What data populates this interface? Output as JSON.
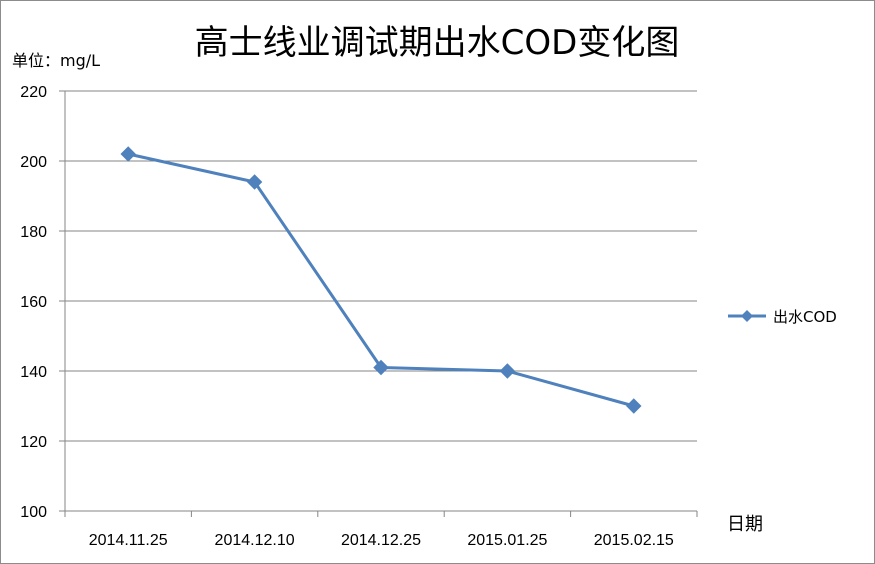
{
  "chart_data": {
    "type": "line",
    "title": "高士线业调试期出水COD变化图",
    "unit_label": "单位：mg/L",
    "xlabel": "日期",
    "ylabel": "",
    "ylim": [
      100,
      220
    ],
    "yticks": [
      100,
      120,
      140,
      160,
      180,
      200,
      220
    ],
    "categories": [
      "2014.11.25",
      "2014.12.10",
      "2014.12.25",
      "2015.01.25",
      "2015.02.15"
    ],
    "series": [
      {
        "name": "出水COD",
        "values": [
          202,
          194,
          141,
          140,
          130
        ],
        "color": "#4f81bd",
        "marker": "diamond"
      }
    ],
    "grid": true,
    "legend_position": "right"
  }
}
